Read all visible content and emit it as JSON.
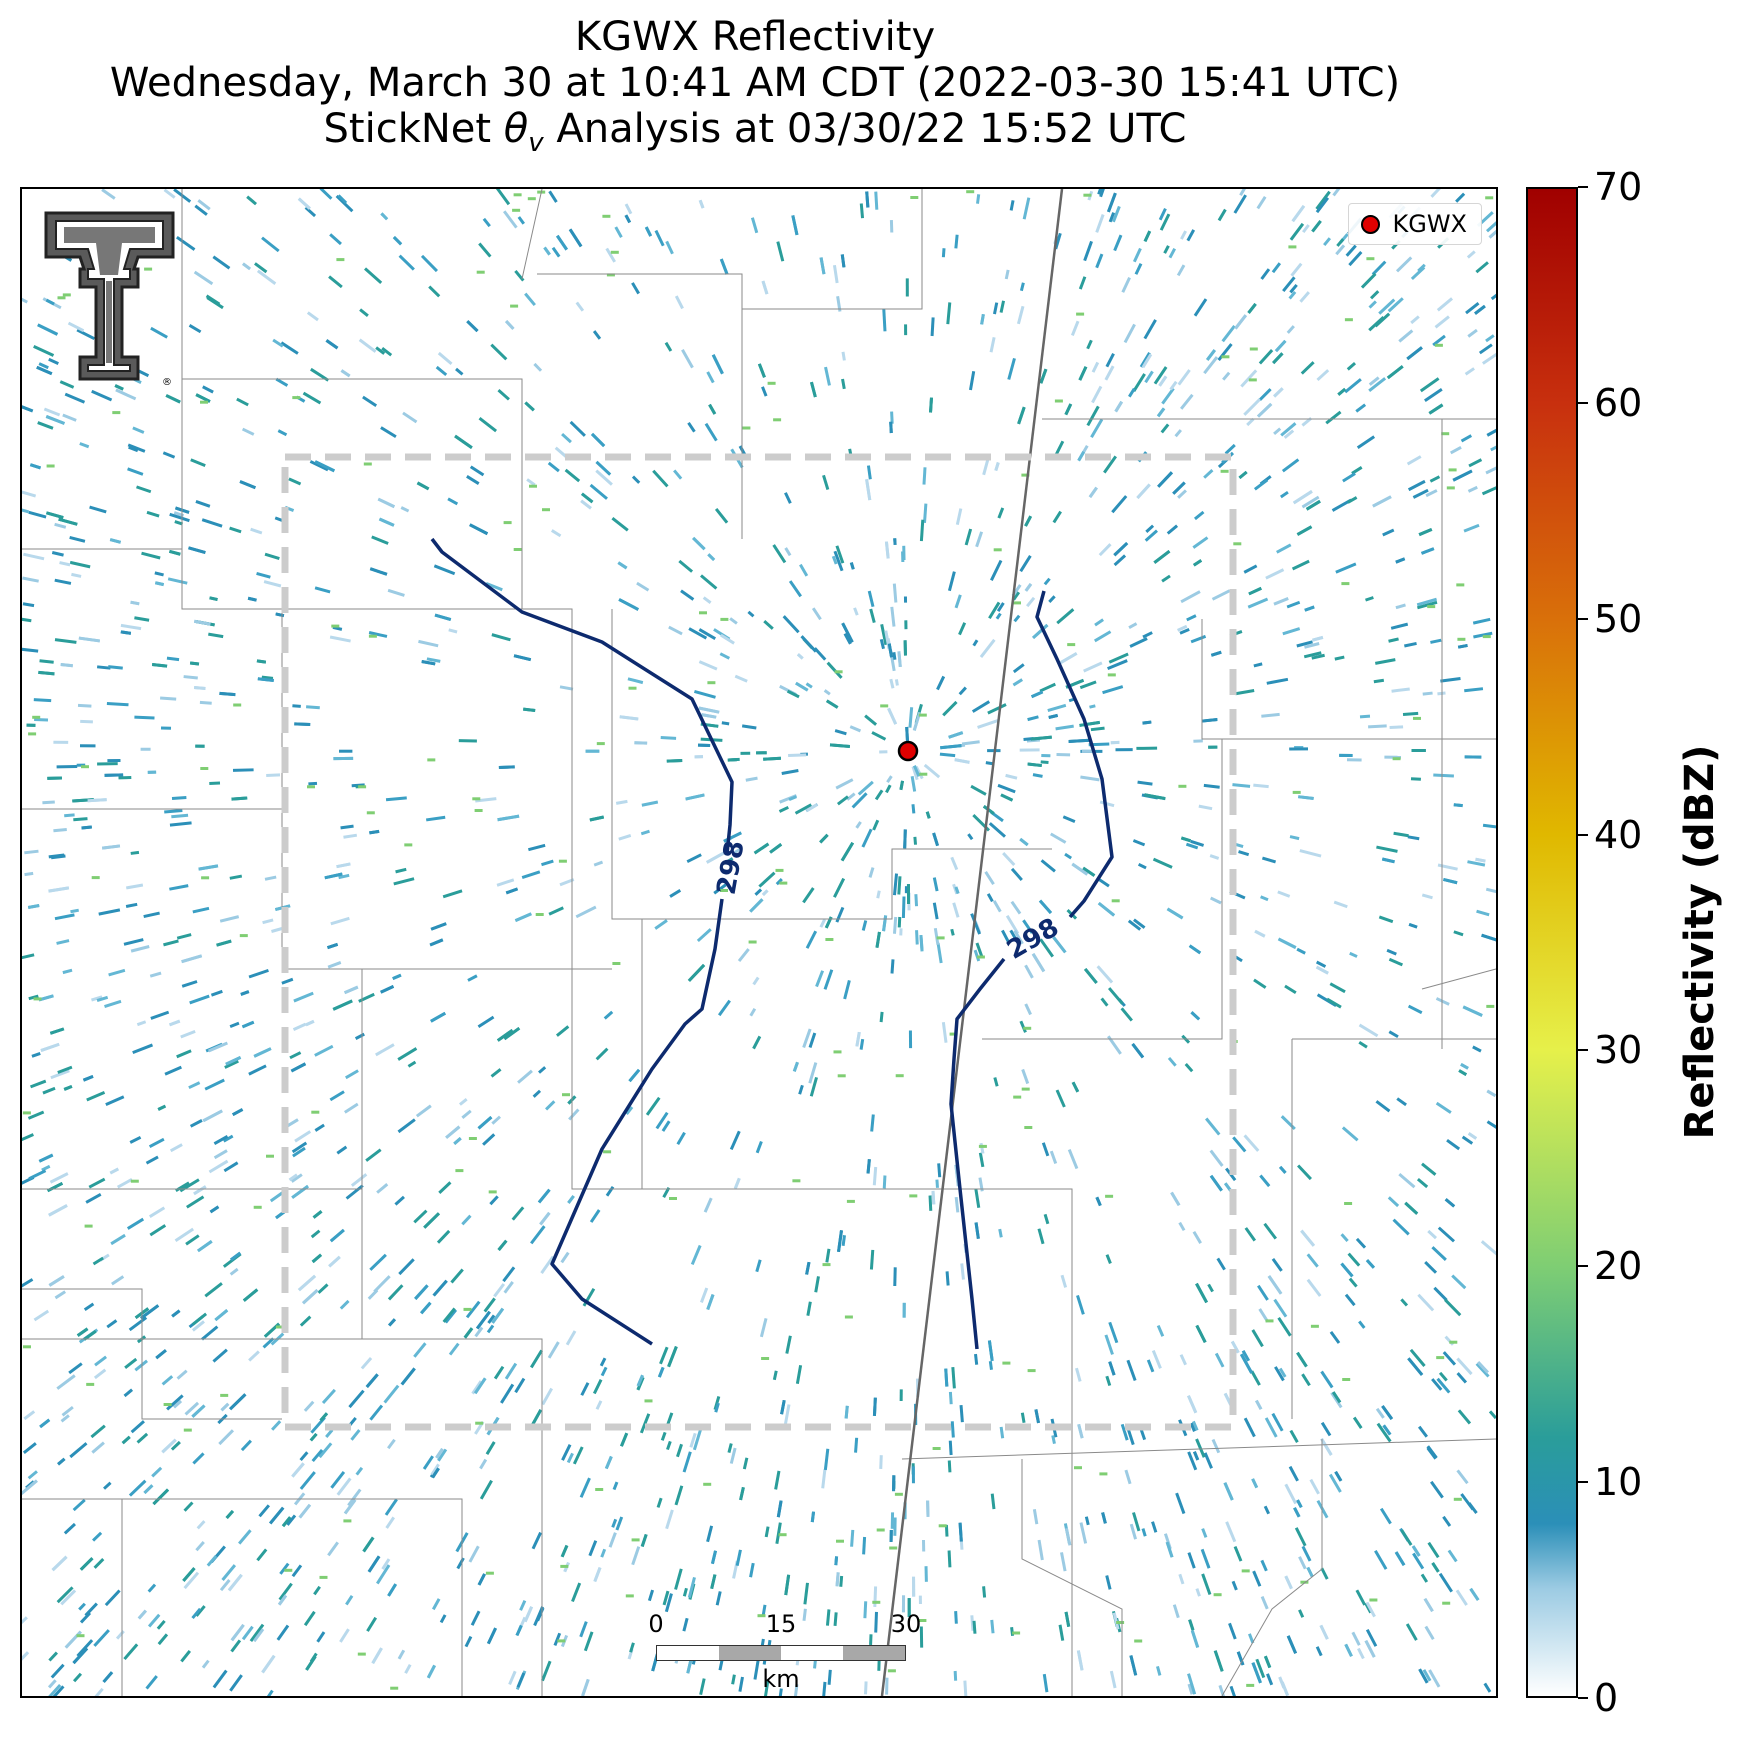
{
  "title": {
    "line1": "KGWX Reflectivity",
    "line2": "Wednesday, March 30 at 10:41 AM CDT (2022-03-30 15:41 UTC)",
    "line3_prefix": "StickNet ",
    "line3_symbol": "θ",
    "line3_subscript": "v",
    "line3_suffix": " Analysis at 03/30/22 15:52 UTC"
  },
  "legend": {
    "label": "KGWX",
    "marker_color": "#e00000"
  },
  "radar_site": {
    "name": "KGWX"
  },
  "contours": {
    "label_left": "298",
    "label_right": "298",
    "color": "#0d2a6e"
  },
  "analysis_box": {
    "style": "dashed",
    "color": "#cccccc"
  },
  "scale_bar": {
    "ticks": [
      "0",
      "15",
      "30"
    ],
    "unit": "km"
  },
  "colorbar": {
    "title": "Reflectivity (dBZ)",
    "min": 0,
    "max": 70,
    "ticks": [
      "0",
      "10",
      "20",
      "30",
      "40",
      "50",
      "60",
      "70"
    ],
    "stops": [
      {
        "value": 0,
        "color": "#ffffff"
      },
      {
        "value": 5,
        "color": "#9ccbe3"
      },
      {
        "value": 8,
        "color": "#2b8fb8"
      },
      {
        "value": 12,
        "color": "#2a9d9a"
      },
      {
        "value": 20,
        "color": "#7fce73"
      },
      {
        "value": 30,
        "color": "#e6f04a"
      },
      {
        "value": 40,
        "color": "#e0b800"
      },
      {
        "value": 50,
        "color": "#d9700a"
      },
      {
        "value": 60,
        "color": "#c8300e"
      },
      {
        "value": 70,
        "color": "#a00000"
      }
    ]
  },
  "logo": {
    "name": "Texas Tech double-T",
    "mark": "®"
  }
}
